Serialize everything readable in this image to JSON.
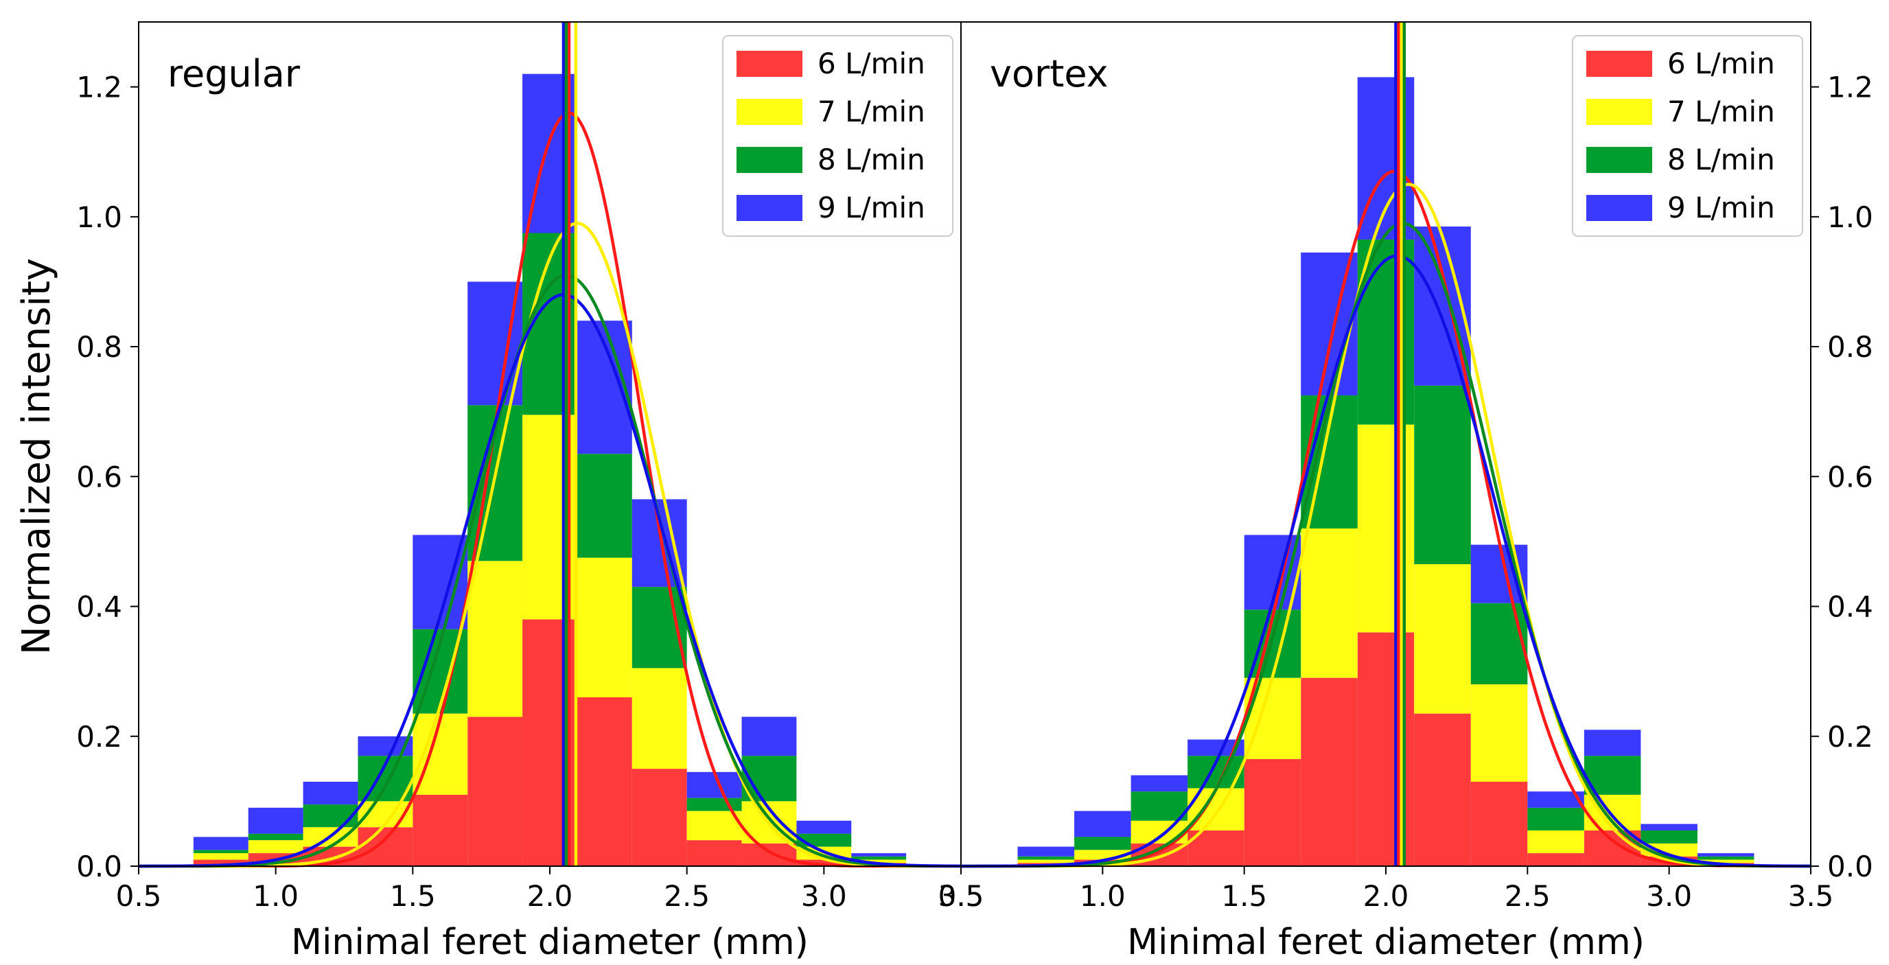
{
  "figure": {
    "ylabel": "Normalized intensity",
    "colors": {
      "6 L/min": "#ff3a3a",
      "7 L/min": "#ffff14",
      "8 L/min": "#009e2e",
      "9 L/min": "#3a3aff"
    },
    "curve_colors": {
      "6 L/min": "#ff1a1a",
      "7 L/min": "#ffee00",
      "8 L/min": "#0b8a22",
      "9 L/min": "#1010e6"
    }
  },
  "chart_data": [
    {
      "type": "bar",
      "subtype": "stacked histogram with gaussian fits",
      "title": "regular",
      "xlabel": "Minimal feret diameter (mm)",
      "ylabel": "Normalized intensity",
      "xlim": [
        0.5,
        3.5
      ],
      "ylim": [
        0,
        1.3
      ],
      "xticks": [
        "0.5",
        "1.0",
        "1.5",
        "2.0",
        "2.5",
        "3.0",
        "3.5"
      ],
      "yticks": [
        "0.0",
        "0.2",
        "0.4",
        "0.6",
        "0.8",
        "1.0",
        "1.2"
      ],
      "yaxis_side": "left",
      "legend": [
        "6 L/min",
        "7 L/min",
        "8 L/min",
        "9 L/min"
      ],
      "legend_position": "top-right",
      "bin_edges": [
        0.7,
        0.9,
        1.1,
        1.3,
        1.5,
        1.7,
        1.9,
        2.1,
        2.3,
        2.5,
        2.7,
        2.9,
        3.1,
        3.3
      ],
      "series": [
        {
          "name": "6 L/min",
          "values": [
            0.01,
            0.02,
            0.03,
            0.06,
            0.11,
            0.23,
            0.38,
            0.26,
            0.15,
            0.04,
            0.035,
            0.01,
            0.005
          ]
        },
        {
          "name": "7 L/min",
          "values": [
            0.01,
            0.02,
            0.03,
            0.04,
            0.125,
            0.24,
            0.315,
            0.215,
            0.155,
            0.045,
            0.065,
            0.02,
            0.005
          ]
        },
        {
          "name": "8 L/min",
          "values": [
            0.005,
            0.01,
            0.035,
            0.07,
            0.13,
            0.24,
            0.28,
            0.16,
            0.125,
            0.02,
            0.07,
            0.02,
            0.005
          ]
        },
        {
          "name": "9 L/min",
          "values": [
            0.02,
            0.04,
            0.035,
            0.03,
            0.145,
            0.19,
            0.245,
            0.205,
            0.135,
            0.04,
            0.06,
            0.02,
            0.005
          ]
        }
      ],
      "fits": [
        {
          "name": "6 L/min",
          "peak": 1.16,
          "mean": 2.07,
          "sigma": 0.26
        },
        {
          "name": "7 L/min",
          "peak": 0.99,
          "mean": 2.1,
          "sigma": 0.3
        },
        {
          "name": "8 L/min",
          "peak": 0.91,
          "mean": 2.06,
          "sigma": 0.33
        },
        {
          "name": "9 L/min",
          "peak": 0.88,
          "mean": 2.05,
          "sigma": 0.35
        }
      ],
      "mean_lines": [
        {
          "name": "6 L/min",
          "x": 2.07
        },
        {
          "name": "7 L/min",
          "x": 2.095
        },
        {
          "name": "9 L/min",
          "x": 2.05
        },
        {
          "name": "8 L/min",
          "x": 2.06
        }
      ]
    },
    {
      "type": "bar",
      "subtype": "stacked histogram with gaussian fits",
      "title": "vortex",
      "xlabel": "Minimal feret diameter (mm)",
      "ylabel": "",
      "xlim": [
        0.5,
        3.5
      ],
      "ylim": [
        0,
        1.3
      ],
      "xticks": [
        "0.5",
        "1.0",
        "1.5",
        "2.0",
        "2.5",
        "3.0",
        "3.5"
      ],
      "yticks": [
        "0.0",
        "0.2",
        "0.4",
        "0.6",
        "0.8",
        "1.0",
        "1.2"
      ],
      "yaxis_side": "right",
      "legend": [
        "6 L/min",
        "7 L/min",
        "8 L/min",
        "9 L/min"
      ],
      "legend_position": "top-right",
      "bin_edges": [
        0.7,
        0.9,
        1.1,
        1.3,
        1.5,
        1.7,
        1.9,
        2.1,
        2.3,
        2.5,
        2.7,
        2.9,
        3.1,
        3.3
      ],
      "series": [
        {
          "name": "6 L/min",
          "values": [
            0.005,
            0.01,
            0.035,
            0.055,
            0.165,
            0.29,
            0.36,
            0.235,
            0.13,
            0.02,
            0.055,
            0.015,
            0.005
          ]
        },
        {
          "name": "7 L/min",
          "values": [
            0.005,
            0.015,
            0.035,
            0.065,
            0.125,
            0.23,
            0.32,
            0.23,
            0.15,
            0.035,
            0.055,
            0.02,
            0.005
          ]
        },
        {
          "name": "8 L/min",
          "values": [
            0.005,
            0.02,
            0.045,
            0.05,
            0.105,
            0.205,
            0.285,
            0.275,
            0.125,
            0.035,
            0.06,
            0.02,
            0.005
          ]
        },
        {
          "name": "9 L/min",
          "values": [
            0.015,
            0.04,
            0.025,
            0.025,
            0.115,
            0.22,
            0.25,
            0.245,
            0.09,
            0.025,
            0.04,
            0.01,
            0.005
          ]
        }
      ],
      "fits": [
        {
          "name": "6 L/min",
          "peak": 1.07,
          "mean": 2.03,
          "sigma": 0.3
        },
        {
          "name": "7 L/min",
          "peak": 1.05,
          "mean": 2.08,
          "sigma": 0.3
        },
        {
          "name": "8 L/min",
          "peak": 0.99,
          "mean": 2.06,
          "sigma": 0.32
        },
        {
          "name": "9 L/min",
          "peak": 0.94,
          "mean": 2.04,
          "sigma": 0.34
        }
      ],
      "mean_lines": [
        {
          "name": "9 L/min",
          "x": 2.035
        },
        {
          "name": "6 L/min",
          "x": 2.045
        },
        {
          "name": "7 L/min",
          "x": 2.055
        },
        {
          "name": "8 L/min",
          "x": 2.065
        }
      ]
    }
  ]
}
